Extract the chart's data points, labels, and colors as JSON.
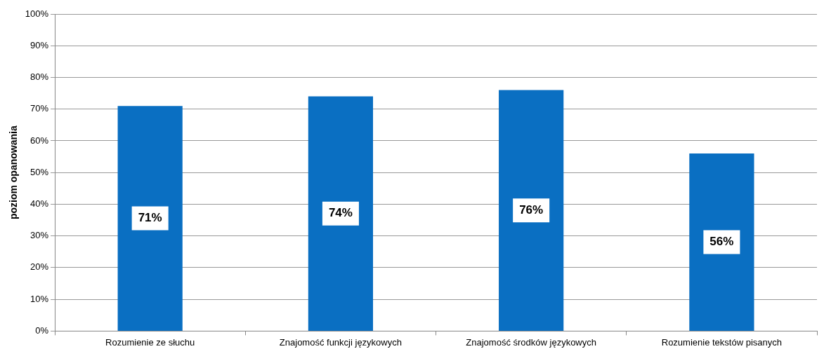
{
  "chart_data": {
    "type": "bar",
    "ylabel": "poziom opanowania",
    "categories": [
      "Rozumienie ze słuchu",
      "Znajomość funkcji językowych",
      "Znajomość środków językowych",
      "Rozumienie tekstów pisanych"
    ],
    "values": [
      71,
      74,
      76,
      56
    ],
    "color": "#0a6fc2",
    "value_labels": [
      "71%",
      "74%",
      "76%",
      "56%"
    ],
    "ylim": [
      0,
      100
    ],
    "yticks": [
      {
        "value": 0,
        "label": "0%"
      },
      {
        "value": 10,
        "label": "10%"
      },
      {
        "value": 20,
        "label": "20%"
      },
      {
        "value": 30,
        "label": "30%"
      },
      {
        "value": 40,
        "label": "40%"
      },
      {
        "value": 50,
        "label": "50%"
      },
      {
        "value": 60,
        "label": "60%"
      },
      {
        "value": 70,
        "label": "70%"
      },
      {
        "value": 80,
        "label": "80%"
      },
      {
        "value": 90,
        "label": "90%"
      },
      {
        "value": 100,
        "label": "100%"
      }
    ],
    "grid": "y",
    "legend": false
  }
}
